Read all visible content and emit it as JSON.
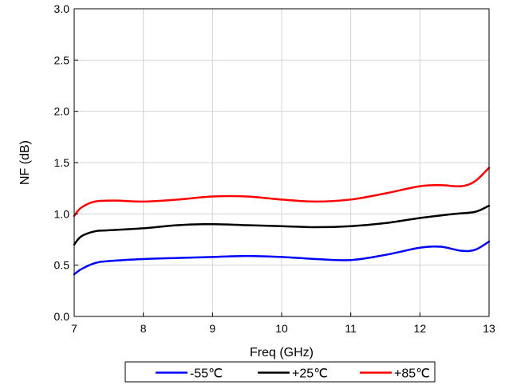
{
  "chart_data": {
    "type": "line",
    "title": "",
    "xlabel": "Freq (GHz)",
    "ylabel": "NF (dB)",
    "xlim": [
      7,
      13
    ],
    "ylim": [
      0.0,
      3.0
    ],
    "xticks": [
      7,
      8,
      9,
      10,
      11,
      12,
      13
    ],
    "yticks": [
      "0.0",
      "0.5",
      "1.0",
      "1.5",
      "2.0",
      "2.5",
      "3.0"
    ],
    "grid": true,
    "legend_position": "bottom",
    "series": [
      {
        "name": "-55℃",
        "color": "#0000ff",
        "x": [
          7.0,
          7.1,
          7.3,
          7.5,
          8.0,
          8.5,
          9.0,
          9.5,
          10.0,
          10.5,
          11.0,
          11.5,
          12.0,
          12.3,
          12.6,
          12.8,
          13.0
        ],
        "y": [
          0.41,
          0.46,
          0.52,
          0.54,
          0.56,
          0.57,
          0.58,
          0.59,
          0.58,
          0.56,
          0.55,
          0.6,
          0.67,
          0.68,
          0.64,
          0.65,
          0.73
        ]
      },
      {
        "name": "+25℃",
        "color": "#000000",
        "x": [
          7.0,
          7.1,
          7.3,
          7.5,
          8.0,
          8.5,
          9.0,
          9.5,
          10.0,
          10.5,
          11.0,
          11.5,
          12.0,
          12.5,
          12.8,
          13.0
        ],
        "y": [
          0.7,
          0.78,
          0.83,
          0.84,
          0.86,
          0.89,
          0.9,
          0.89,
          0.88,
          0.87,
          0.88,
          0.91,
          0.96,
          1.0,
          1.02,
          1.08
        ]
      },
      {
        "name": "+85℃",
        "color": "#ff0000",
        "x": [
          7.0,
          7.1,
          7.3,
          7.6,
          8.0,
          8.5,
          9.0,
          9.5,
          10.0,
          10.5,
          11.0,
          11.5,
          12.0,
          12.3,
          12.6,
          12.8,
          13.0
        ],
        "y": [
          0.98,
          1.06,
          1.12,
          1.13,
          1.12,
          1.14,
          1.17,
          1.17,
          1.14,
          1.12,
          1.14,
          1.2,
          1.27,
          1.28,
          1.27,
          1.32,
          1.45
        ]
      }
    ]
  }
}
